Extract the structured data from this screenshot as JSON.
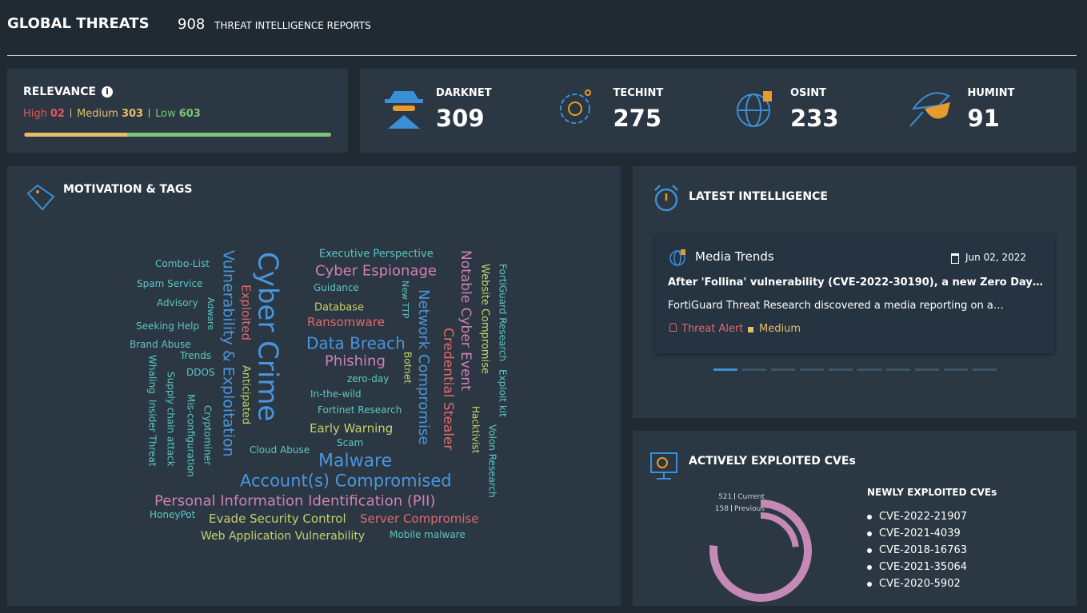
{
  "header": {
    "title": "GLOBAL THREATS",
    "report_count": 908,
    "report_label": "THREAT INTELLIGENCE REPORTS"
  },
  "relevance": {
    "title": "RELEVANCE",
    "levels": [
      {
        "name": "High",
        "value": 2,
        "value_label": "02",
        "color": "#e0555f"
      },
      {
        "name": "Medium",
        "value": 303,
        "color": "#e6bd6a"
      },
      {
        "name": "Low",
        "value": 603,
        "color": "#7cc576"
      }
    ]
  },
  "sources": [
    {
      "name": "DARKNET",
      "value": 309
    },
    {
      "name": "TECHINT",
      "value": 275
    },
    {
      "name": "OSINT",
      "value": 233
    },
    {
      "name": "HUMINT",
      "value": 91
    }
  ],
  "motivation": {
    "title": "MOTIVATION & TAGS",
    "tags": [
      "Executive Perspective",
      "Combo-List",
      "Cyber Espionage",
      "Spam Service",
      "Guidance",
      "Advisory",
      "Database",
      "Ransomware",
      "Seeking Help",
      "Data Breach",
      "Brand Abuse",
      "Trends",
      "Phishing",
      "DDOS",
      "zero-day",
      "In-the-wild",
      "Fortinet Research",
      "Early Warning",
      "Scam",
      "Cloud Abuse",
      "Malware",
      "Account(s) Compromised",
      "Personal Information Identification (PII)",
      "HoneyPot",
      "Evade Security Control",
      "Server Compromise",
      "Web Application Vulnerability",
      "Mobile malware",
      "Cyber Crime",
      "Vulnerability & Exploitation",
      "Exploited",
      "Adware",
      "Anticipated",
      "Whaling",
      "Supply chain attack",
      "Insider Threat",
      "Mis-configuration",
      "Cryptominer",
      "New TTP",
      "Botnet",
      "Network Compromise",
      "Notable Cyber Event",
      "Credential Stealer",
      "Website Compromise",
      "FortiGuard Research",
      "Exploit kit",
      "Hacktivist",
      "Volon Research"
    ]
  },
  "latest": {
    "title": "LATEST INTELLIGENCE",
    "card": {
      "source": "Media Trends",
      "date": "Jun 02, 2022",
      "headline": "After 'Follina' vulnerability (CVE-2022-30190), a new Zero Day…",
      "summary": "FortiGuard Threat Research discovered a media reporting on a…",
      "tag": "Threat Alert",
      "severity": "Medium"
    }
  },
  "cves": {
    "title": "ACTIVELY EXPLOITED CVEs",
    "current": {
      "value": 521,
      "label": "Current"
    },
    "previous": {
      "value": 158,
      "label": "Previous"
    },
    "list_title": "NEWLY EXPLOITED CVEs",
    "list": [
      "CVE-2022-21907",
      "CVE-2021-4039",
      "CVE-2018-16763",
      "CVE-2021-35064",
      "CVE-2020-5902"
    ]
  }
}
